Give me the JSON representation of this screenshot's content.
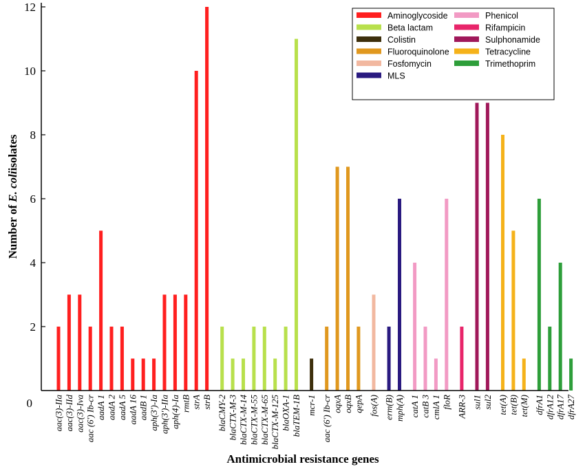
{
  "chart_data": {
    "type": "bar",
    "title": "",
    "xlabel": "Antimicrobial resistance genes",
    "ylabel_parts": [
      "Number of ",
      "E. coli",
      " isolates"
    ],
    "ylim": [
      0,
      12
    ],
    "yticks": [
      0,
      2,
      4,
      6,
      8,
      10,
      12
    ],
    "legend_position": "top-right",
    "groups": [
      {
        "name": "Aminoglycoside",
        "color": "#ff1f1f",
        "genes": [
          "aac(3)-IIa",
          "aac(3)-IId",
          "aac(3)-Iva",
          "aac (6') Ib-cr",
          "aadA 1",
          "aadA 2",
          "aadA 5",
          "aadA 16",
          "aadB 1",
          "aph(3')-Ia",
          "aph(3')-IIa",
          "aph(4)-Ia",
          "rmtB",
          "strA",
          "strB"
        ],
        "values": [
          2,
          3,
          3,
          2,
          5,
          2,
          2,
          1,
          1,
          1,
          3,
          3,
          3,
          10,
          12
        ]
      },
      {
        "name": "Beta lactam",
        "color": "#b8e04c",
        "genes": [
          "blaCMY-2",
          "blaCTX-M-3",
          "blaCTX-M-14",
          "blaCTX-M-55",
          "blaCTX-M-65",
          "blaCTX-M-125",
          "blaOXA-1",
          "blaTEM-1B"
        ],
        "values": [
          2,
          1,
          1,
          2,
          2,
          1,
          2,
          11
        ]
      },
      {
        "name": "Colistin",
        "color": "#3d2f0c",
        "genes": [
          "mcr-1"
        ],
        "values": [
          1
        ]
      },
      {
        "name": "Fluoroquinolone",
        "color": "#e0981f",
        "genes": [
          "aac (6') Ib-cr",
          "oqxA",
          "oqxB",
          "qepA"
        ],
        "values": [
          2,
          7,
          7,
          2
        ]
      },
      {
        "name": "Fosfomycin",
        "color": "#f2b8a0",
        "genes": [
          "fos(A)"
        ],
        "values": [
          3
        ]
      },
      {
        "name": "MLS",
        "color": "#2a1a80",
        "genes": [
          "erm(B)",
          "mph(A)"
        ],
        "values": [
          2,
          6
        ]
      },
      {
        "name": "Phenicol",
        "color": "#f29ac4",
        "genes": [
          "catA 1",
          "catB 3",
          "cmlA 1",
          "floR"
        ],
        "values": [
          4,
          2,
          1,
          6
        ]
      },
      {
        "name": "Rifampicin",
        "color": "#e8256a",
        "genes": [
          "ARR-3"
        ],
        "values": [
          2
        ]
      },
      {
        "name": "Sulphonamide",
        "color": "#a0185a",
        "genes": [
          "sul1",
          "sul2"
        ],
        "values": [
          9,
          9
        ]
      },
      {
        "name": "Tetracycline",
        "color": "#f5b21a",
        "genes": [
          "tet(A)",
          "tet(B)",
          "tet(M)"
        ],
        "values": [
          8,
          5,
          1
        ]
      },
      {
        "name": "Trimethoprim",
        "color": "#2e9e3a",
        "genes": [
          "dfrA1",
          "dfrA12",
          "dfrA17",
          "dfrA27"
        ],
        "values": [
          6,
          2,
          4,
          1
        ]
      }
    ]
  }
}
